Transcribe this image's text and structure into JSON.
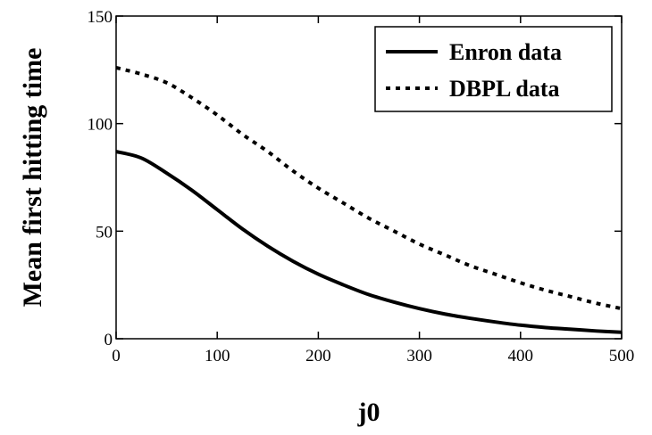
{
  "chart_data": {
    "type": "line",
    "title": "",
    "xlabel": "j0",
    "ylabel": "Mean first hitting time",
    "xlim": [
      0,
      500
    ],
    "ylim": [
      0,
      150
    ],
    "xticks": [
      0,
      100,
      200,
      300,
      400,
      500
    ],
    "yticks": [
      0,
      50,
      100,
      150
    ],
    "grid": false,
    "legend_position": "top-right",
    "x": [
      0,
      25,
      50,
      75,
      100,
      125,
      150,
      175,
      200,
      225,
      250,
      275,
      300,
      325,
      350,
      375,
      400,
      425,
      450,
      475,
      500
    ],
    "series": [
      {
        "name": "Enron data",
        "style": "solid",
        "color": "#000000",
        "values": [
          87,
          84,
          77,
          69,
          60,
          51,
          43,
          36,
          30,
          25,
          20.5,
          17,
          14,
          11.5,
          9.5,
          7.8,
          6.3,
          5.2,
          4.4,
          3.6,
          3
        ]
      },
      {
        "name": "DBPL data",
        "style": "dotted",
        "color": "#000000",
        "values": [
          126,
          123,
          119,
          112,
          104,
          95,
          87,
          78,
          70,
          63,
          56,
          50,
          44,
          39,
          34,
          30,
          26,
          22.5,
          19.5,
          16.5,
          14
        ]
      }
    ]
  }
}
